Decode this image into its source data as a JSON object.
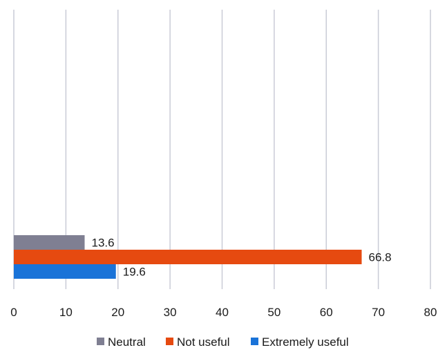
{
  "chart_data": {
    "type": "bar",
    "orientation": "horizontal",
    "title": "",
    "xlabel": "",
    "ylabel": "",
    "xlim": [
      0,
      80
    ],
    "x_ticks": [
      0,
      10,
      20,
      30,
      40,
      50,
      60,
      70,
      80
    ],
    "grid": "vertical",
    "legend_position": "bottom",
    "series": [
      {
        "name": "Neutral",
        "value": 13.6,
        "label": "13.6",
        "color": "#7f7f92"
      },
      {
        "name": "Not useful",
        "value": 66.8,
        "label": "66.8",
        "color": "#e64a10"
      },
      {
        "name": "Extremely useful",
        "value": 19.6,
        "label": "19.6",
        "color": "#1a73d8"
      }
    ]
  }
}
